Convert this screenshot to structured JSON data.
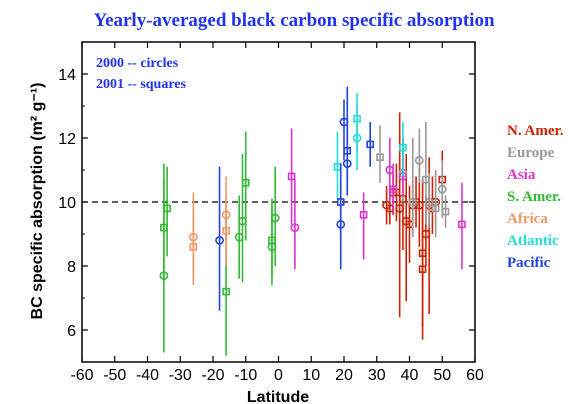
{
  "chart_data": {
    "type": "scatter",
    "title": "Yearly-averaged black carbon specific absorption",
    "xlabel": "Latitude",
    "ylabel": "BC specific absorption (m² g⁻¹)",
    "xlim": [
      -60,
      60
    ],
    "ylim": [
      5,
      15
    ],
    "xticks": [
      -60,
      -50,
      -40,
      -30,
      -20,
      -10,
      0,
      10,
      20,
      30,
      40,
      50,
      60
    ],
    "yticks": [
      6,
      8,
      10,
      12,
      14
    ],
    "reference_line": {
      "y": 10,
      "style": "dashed"
    },
    "annotations": [
      "2000 -- circles",
      "2001 -- squares"
    ],
    "legend_position": "right",
    "series": [
      {
        "name": "N. Amer.",
        "color": "#cc2200",
        "points": [
          {
            "x": 33,
            "y": 9.9,
            "lo": 9.3,
            "hi": 10.5,
            "marker": "circle"
          },
          {
            "x": 34,
            "y": 9.8,
            "lo": 9.3,
            "hi": 10.4,
            "marker": "square"
          },
          {
            "x": 35,
            "y": 10.3,
            "lo": 9.6,
            "hi": 11.0,
            "marker": "circle"
          },
          {
            "x": 36,
            "y": 10.3,
            "lo": 9.4,
            "hi": 11.2,
            "marker": "square"
          },
          {
            "x": 37,
            "y": 9.8,
            "lo": 6.4,
            "hi": 12.8,
            "marker": "circle"
          },
          {
            "x": 38,
            "y": 10.1,
            "lo": 8.5,
            "hi": 12.0,
            "marker": "square"
          },
          {
            "x": 39,
            "y": 9.4,
            "lo": 6.9,
            "hi": 11.5,
            "marker": "circle"
          },
          {
            "x": 40,
            "y": 9.3,
            "lo": 8.1,
            "hi": 10.5,
            "marker": "square"
          },
          {
            "x": 41,
            "y": 9.9,
            "lo": 9.0,
            "hi": 10.8,
            "marker": "circle"
          },
          {
            "x": 42,
            "y": 10.0,
            "lo": 9.2,
            "hi": 10.8,
            "marker": "square"
          },
          {
            "x": 43,
            "y": 9.9,
            "lo": 8.6,
            "hi": 11.5,
            "marker": "circle"
          },
          {
            "x": 44,
            "y": 8.4,
            "lo": 6.1,
            "hi": 10.7,
            "marker": "square"
          },
          {
            "x": 44,
            "y": 7.9,
            "lo": 5.7,
            "hi": 9.9,
            "marker": "square"
          },
          {
            "x": 45,
            "y": 9.0,
            "lo": 8.0,
            "hi": 10.2,
            "marker": "circle"
          },
          {
            "x": 46,
            "y": 9.9,
            "lo": 6.5,
            "hi": 11.4,
            "marker": "circle"
          },
          {
            "x": 47,
            "y": 9.8,
            "lo": 9.0,
            "hi": 10.8,
            "marker": "square"
          },
          {
            "x": 48,
            "y": 10.0,
            "lo": 9.3,
            "hi": 10.9,
            "marker": "circle"
          },
          {
            "x": 50,
            "y": 10.7,
            "lo": 9.7,
            "hi": 11.6,
            "marker": "square"
          }
        ]
      },
      {
        "name": "Europe",
        "color": "#999999",
        "points": [
          {
            "x": 31,
            "y": 11.4,
            "lo": 10.6,
            "hi": 12.4,
            "marker": "square"
          },
          {
            "x": 38,
            "y": 10.9,
            "lo": 10.0,
            "hi": 12.0,
            "marker": "circle"
          },
          {
            "x": 41,
            "y": 10.0,
            "lo": 8.9,
            "hi": 12.0,
            "marker": "square"
          },
          {
            "x": 43,
            "y": 11.3,
            "lo": 10.6,
            "hi": 12.3,
            "marker": "circle"
          },
          {
            "x": 45,
            "y": 10.7,
            "lo": 9.3,
            "hi": 12.5,
            "marker": "square"
          },
          {
            "x": 46,
            "y": 10.0,
            "lo": 9.2,
            "hi": 10.9,
            "marker": "circle"
          },
          {
            "x": 48,
            "y": 9.8,
            "lo": 8.9,
            "hi": 11.0,
            "marker": "square"
          },
          {
            "x": 50,
            "y": 10.4,
            "lo": 9.5,
            "hi": 11.3,
            "marker": "circle"
          },
          {
            "x": 51,
            "y": 9.7,
            "lo": 9.2,
            "hi": 10.2,
            "marker": "square"
          }
        ]
      },
      {
        "name": "Asia",
        "color": "#dd33cc",
        "points": [
          {
            "x": 4,
            "y": 10.8,
            "lo": 9.3,
            "hi": 12.3,
            "marker": "square"
          },
          {
            "x": 5,
            "y": 9.2,
            "lo": 7.9,
            "hi": 10.7,
            "marker": "circle"
          },
          {
            "x": 26,
            "y": 9.6,
            "lo": 8.2,
            "hi": 10.3,
            "marker": "square"
          },
          {
            "x": 34,
            "y": 11.0,
            "lo": 10.0,
            "hi": 12.0,
            "marker": "circle"
          },
          {
            "x": 35,
            "y": 10.4,
            "lo": 9.7,
            "hi": 11.2,
            "marker": "square"
          },
          {
            "x": 38,
            "y": 10.8,
            "lo": 10.2,
            "hi": 11.4,
            "marker": "circle"
          },
          {
            "x": 56,
            "y": 9.3,
            "lo": 7.9,
            "hi": 10.6,
            "marker": "square"
          }
        ]
      },
      {
        "name": "S. Amer.",
        "color": "#33bb33",
        "points": [
          {
            "x": -35,
            "y": 7.7,
            "lo": 5.3,
            "hi": 11.2,
            "marker": "circle"
          },
          {
            "x": -35,
            "y": 9.2,
            "lo": 7.6,
            "hi": 10.7,
            "marker": "square"
          },
          {
            "x": -34,
            "y": 9.8,
            "lo": 8.3,
            "hi": 11.1,
            "marker": "square"
          },
          {
            "x": -16,
            "y": 7.2,
            "lo": 5.2,
            "hi": 9.6,
            "marker": "square"
          },
          {
            "x": -12,
            "y": 8.9,
            "lo": 7.6,
            "hi": 10.2,
            "marker": "circle"
          },
          {
            "x": -11,
            "y": 9.4,
            "lo": 7.5,
            "hi": 11.5,
            "marker": "circle"
          },
          {
            "x": -10,
            "y": 10.6,
            "lo": 8.8,
            "hi": 12.2,
            "marker": "square"
          },
          {
            "x": -2,
            "y": 8.6,
            "lo": 7.4,
            "hi": 9.9,
            "marker": "circle"
          },
          {
            "x": -2,
            "y": 8.8,
            "lo": 7.7,
            "hi": 10.1,
            "marker": "square"
          },
          {
            "x": -1,
            "y": 9.5,
            "lo": 8.0,
            "hi": 11.1,
            "marker": "circle"
          }
        ]
      },
      {
        "name": "Africa",
        "color": "#ee9966",
        "points": [
          {
            "x": -26,
            "y": 8.9,
            "lo": 7.6,
            "hi": 10.3,
            "marker": "circle"
          },
          {
            "x": -26,
            "y": 8.6,
            "lo": 7.4,
            "hi": 9.8,
            "marker": "square"
          },
          {
            "x": -16,
            "y": 9.6,
            "lo": 8.4,
            "hi": 10.8,
            "marker": "circle"
          },
          {
            "x": -16,
            "y": 9.1,
            "lo": 8.0,
            "hi": 10.2,
            "marker": "square"
          }
        ]
      },
      {
        "name": "Atlantic",
        "color": "#22dddd",
        "points": [
          {
            "x": 18,
            "y": 11.1,
            "lo": 10.1,
            "hi": 12.2,
            "marker": "square"
          },
          {
            "x": 24,
            "y": 12.0,
            "lo": 11.0,
            "hi": 13.0,
            "marker": "circle"
          },
          {
            "x": 24,
            "y": 12.6,
            "lo": 11.6,
            "hi": 13.4,
            "marker": "square"
          },
          {
            "x": 38,
            "y": 11.7,
            "lo": 10.8,
            "hi": 12.5,
            "marker": "square"
          }
        ]
      },
      {
        "name": "Pacific",
        "color": "#2244dd",
        "points": [
          {
            "x": -18,
            "y": 8.8,
            "lo": 6.6,
            "hi": 11.1,
            "marker": "circle"
          },
          {
            "x": 19,
            "y": 9.3,
            "lo": 7.9,
            "hi": 10.6,
            "marker": "circle"
          },
          {
            "x": 19,
            "y": 10.0,
            "lo": 8.8,
            "hi": 11.2,
            "marker": "square"
          },
          {
            "x": 20,
            "y": 12.5,
            "lo": 11.3,
            "hi": 13.2,
            "marker": "circle"
          },
          {
            "x": 21,
            "y": 11.6,
            "lo": 10.6,
            "hi": 13.6,
            "marker": "square"
          },
          {
            "x": 21,
            "y": 11.2,
            "lo": 10.2,
            "hi": 12.3,
            "marker": "circle"
          },
          {
            "x": 28,
            "y": 11.8,
            "lo": 11.1,
            "hi": 12.5,
            "marker": "square"
          }
        ]
      }
    ]
  }
}
